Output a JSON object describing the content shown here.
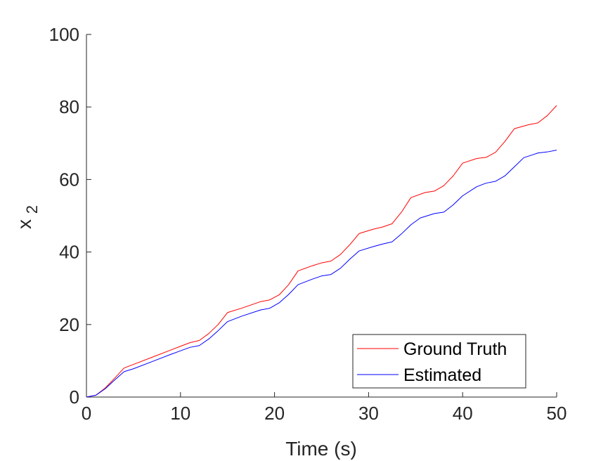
{
  "chart_data": {
    "type": "line",
    "title": "",
    "xlabel": "Time (s)",
    "ylabel_main": "x",
    "ylabel_sub": "2",
    "xlim": [
      0,
      50
    ],
    "ylim": [
      0,
      100
    ],
    "xticks": [
      0,
      10,
      20,
      30,
      40,
      50
    ],
    "yticks": [
      0,
      20,
      40,
      60,
      80,
      100
    ],
    "grid": false,
    "legend_position": "bottom-right",
    "series": [
      {
        "name": "Ground Truth",
        "color": "#ff0000",
        "points": [
          [
            0,
            0
          ],
          [
            1,
            0.5
          ],
          [
            2,
            2.5
          ],
          [
            3,
            5.2
          ],
          [
            4,
            8.0
          ],
          [
            5,
            9.0
          ],
          [
            7,
            11.0
          ],
          [
            9,
            13.0
          ],
          [
            11,
            15.0
          ],
          [
            12,
            15.6
          ],
          [
            13,
            17.5
          ],
          [
            14,
            20.0
          ],
          [
            15,
            23.3
          ],
          [
            16.5,
            24.5
          ],
          [
            18.5,
            26.3
          ],
          [
            19.5,
            26.8
          ],
          [
            20.5,
            28.2
          ],
          [
            21.5,
            31.0
          ],
          [
            22.5,
            34.8
          ],
          [
            24,
            36.2
          ],
          [
            25,
            37.0
          ],
          [
            26,
            37.5
          ],
          [
            27,
            39.3
          ],
          [
            28,
            42.0
          ],
          [
            29,
            45.1
          ],
          [
            30.5,
            46.3
          ],
          [
            31.5,
            46.9
          ],
          [
            32.5,
            47.8
          ],
          [
            33.5,
            51.0
          ],
          [
            34.5,
            55.0
          ],
          [
            36,
            56.4
          ],
          [
            37,
            56.8
          ],
          [
            38,
            58.3
          ],
          [
            39,
            61.0
          ],
          [
            40,
            64.5
          ],
          [
            41.5,
            65.8
          ],
          [
            42.5,
            66.1
          ],
          [
            43.5,
            67.5
          ],
          [
            44.5,
            70.5
          ],
          [
            45.5,
            74.0
          ],
          [
            47,
            75.1
          ],
          [
            48,
            75.6
          ],
          [
            49,
            77.6
          ],
          [
            50,
            80.4
          ]
        ]
      },
      {
        "name": "Estimated",
        "color": "#0000ff",
        "points": [
          [
            0,
            0
          ],
          [
            1,
            0.5
          ],
          [
            2,
            2.3
          ],
          [
            3,
            4.7
          ],
          [
            4,
            7.0
          ],
          [
            5,
            7.8
          ],
          [
            7,
            9.8
          ],
          [
            9,
            11.8
          ],
          [
            11,
            13.7
          ],
          [
            12,
            14.2
          ],
          [
            13,
            16.0
          ],
          [
            14,
            18.3
          ],
          [
            15,
            20.8
          ],
          [
            16.5,
            22.3
          ],
          [
            18.5,
            24.0
          ],
          [
            19.5,
            24.5
          ],
          [
            20.5,
            26.0
          ],
          [
            21.5,
            28.3
          ],
          [
            22.5,
            31.0
          ],
          [
            24,
            32.5
          ],
          [
            25,
            33.4
          ],
          [
            26,
            33.8
          ],
          [
            27,
            35.5
          ],
          [
            28,
            38.0
          ],
          [
            29,
            40.3
          ],
          [
            30.5,
            41.5
          ],
          [
            31.5,
            42.2
          ],
          [
            32.5,
            42.8
          ],
          [
            33.5,
            45.0
          ],
          [
            34.5,
            47.5
          ],
          [
            35.5,
            49.4
          ],
          [
            37,
            50.6
          ],
          [
            38,
            51.0
          ],
          [
            39,
            53.0
          ],
          [
            40,
            55.5
          ],
          [
            41.5,
            58.0
          ],
          [
            42.5,
            59.0
          ],
          [
            43.5,
            59.5
          ],
          [
            44.5,
            61.0
          ],
          [
            45.5,
            63.5
          ],
          [
            46.5,
            66.0
          ],
          [
            48,
            67.3
          ],
          [
            49,
            67.6
          ],
          [
            50,
            68.1
          ]
        ]
      }
    ]
  }
}
